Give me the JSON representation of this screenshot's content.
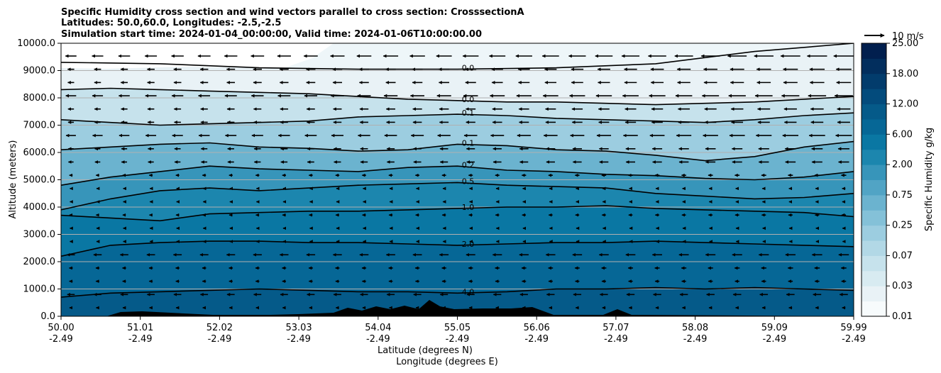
{
  "title_lines": [
    "Specific Humidity cross section and wind vectors parallel to cross section: CrosssectionA",
    "Latitudes: 50.0,60.0, Longitudes: -2.5,-2.5",
    "Simulation start time: 2024-01-04_00:00:00, Valid time: 2024-01-06T10:00:00.00"
  ],
  "chart_data": {
    "type": "heatmap",
    "ylabel": "Altitude (meters)",
    "xlabel_lines": [
      "Latitude (degrees N)",
      "Longitude (degrees E)"
    ],
    "ylim": [
      0,
      10000
    ],
    "yticks": [
      "0.0",
      "1000.0",
      "2000.0",
      "3000.0",
      "4000.0",
      "5000.0",
      "6000.0",
      "7000.0",
      "8000.0",
      "9000.0",
      "10000.0"
    ],
    "yvalues": [
      0,
      1000,
      2000,
      3000,
      4000,
      5000,
      6000,
      7000,
      8000,
      9000,
      10000
    ],
    "xticks": [
      {
        "lat": "50.00",
        "lon": "-2.49"
      },
      {
        "lat": "51.01",
        "lon": "-2.49"
      },
      {
        "lat": "52.02",
        "lon": "-2.49"
      },
      {
        "lat": "53.03",
        "lon": "-2.49"
      },
      {
        "lat": "54.04",
        "lon": "-2.49"
      },
      {
        "lat": "55.05",
        "lon": "-2.49"
      },
      {
        "lat": "56.06",
        "lon": "-2.49"
      },
      {
        "lat": "57.07",
        "lon": "-2.49"
      },
      {
        "lat": "58.08",
        "lon": "-2.49"
      },
      {
        "lat": "59.09",
        "lon": "-2.49"
      },
      {
        "lat": "59.99",
        "lon": "-2.49"
      }
    ],
    "grid": "horizontal",
    "colorbar": {
      "label": "Specific Humidity g/kg",
      "ticks": [
        "0.01",
        "0.03",
        "0.07",
        "0.25",
        "0.75",
        "2.00",
        "6.00",
        "12.00",
        "18.00",
        "25.00"
      ],
      "colors": [
        "#f7fbfc",
        "#e9f2f6",
        "#d8ebf1",
        "#c6e2ec",
        "#b2d8e6",
        "#9ccde0",
        "#84c1d8",
        "#6bb3cf",
        "#51a4c5",
        "#3795ba",
        "#1c86ae",
        "#0a77a3",
        "#066796",
        "#055a89",
        "#034b7c",
        "#023c6c",
        "#022e5d",
        "#011f4e"
      ]
    },
    "contours": [
      {
        "label": "0.0",
        "altitudes": [
          9300,
          9250,
          9100,
          9050,
          9050,
          9100,
          9250,
          9700,
          10000
        ]
      },
      {
        "label": "0.0",
        "altitudes": [
          8300,
          8350,
          8300,
          8250,
          8200,
          8150,
          8050,
          7950,
          7900,
          7850,
          7850,
          7800,
          7750,
          7800,
          7850,
          7950,
          8050
        ]
      },
      {
        "label": "0.1",
        "altitudes": [
          7200,
          7100,
          7000,
          7050,
          7100,
          7150,
          7300,
          7350,
          7400,
          7350,
          7250,
          7200,
          7150,
          7100,
          7200,
          7350,
          7450
        ]
      },
      {
        "label": "0.1",
        "altitudes": [
          6100,
          6200,
          6300,
          6350,
          6200,
          6150,
          6050,
          6100,
          6300,
          6250,
          6100,
          6050,
          5900,
          5700,
          5850,
          6200,
          6400
        ]
      },
      {
        "label": "0.2",
        "altitudes": [
          4800,
          5100,
          5300,
          5500,
          5400,
          5350,
          5300,
          5450,
          5500,
          5350,
          5300,
          5200,
          5150,
          5050,
          5000,
          5100,
          5300
        ]
      },
      {
        "label": "0.5",
        "altitudes": [
          3900,
          4300,
          4600,
          4700,
          4600,
          4700,
          4800,
          4850,
          4900,
          4800,
          4750,
          4700,
          4500,
          4400,
          4300,
          4350,
          4500
        ]
      },
      {
        "label": "1.0",
        "altitudes": [
          3700,
          3600,
          3500,
          3750,
          3800,
          3850,
          3850,
          3900,
          3950,
          4000,
          4000,
          4050,
          3950,
          3900,
          3850,
          3800,
          3650
        ]
      },
      {
        "label": "2.0",
        "altitudes": [
          2200,
          2600,
          2700,
          2750,
          2750,
          2700,
          2700,
          2650,
          2600,
          2650,
          2700,
          2700,
          2750,
          2700,
          2650,
          2600,
          2550
        ]
      },
      {
        "label": "4.0",
        "altitudes": [
          700,
          850,
          900,
          950,
          1000,
          950,
          900,
          900,
          850,
          900,
          1000,
          1000,
          1050,
          1000,
          1050,
          1000,
          950
        ]
      }
    ],
    "quiver_key": "10 m/s"
  }
}
